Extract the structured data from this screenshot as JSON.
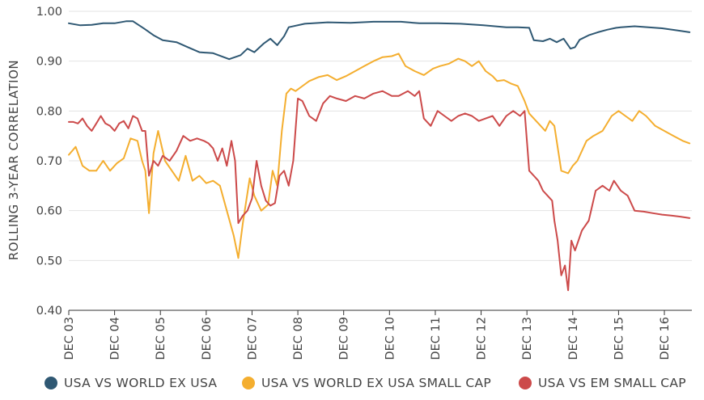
{
  "chart_data": {
    "type": "line",
    "title": "",
    "xlabel": "",
    "ylabel": "ROLLING 3-YEAR CORRELATION",
    "ylim": [
      0.4,
      1.0
    ],
    "yticks": [
      1.0,
      0.9,
      0.8,
      0.7,
      0.6,
      0.5,
      0.4
    ],
    "ytick_labels": [
      "1.00",
      "0.90",
      "0.80",
      "0.70",
      "0.60",
      "0.50",
      "0.40"
    ],
    "xlim": [
      2003.95,
      2017.55
    ],
    "xticks": [
      2003.95,
      2004.95,
      2005.95,
      2006.95,
      2007.95,
      2008.95,
      2009.95,
      2010.95,
      2011.95,
      2012.95,
      2013.95,
      2014.95,
      2015.95,
      2016.95
    ],
    "xtick_labels": [
      "DEC 03",
      "DEC 04",
      "DEC 05",
      "DEC 06",
      "DEC 07",
      "DEC 08",
      "DEC 09",
      "DEC 10",
      "DEC 11",
      "DEC 12",
      "DEC 13",
      "DEC 14",
      "DEC 15",
      "DEC 16"
    ],
    "grid": true,
    "legend_position": "bottom",
    "series": [
      {
        "name": "USA VS WORLD EX USA",
        "color": "#2f5873",
        "x": [
          2003.95,
          2004.2,
          2004.45,
          2004.7,
          2004.95,
          2005.2,
          2005.35,
          2005.6,
          2005.8,
          2006.0,
          2006.3,
          2006.55,
          2006.8,
          2007.1,
          2007.45,
          2007.7,
          2007.85,
          2008.0,
          2008.2,
          2008.35,
          2008.5,
          2008.65,
          2008.75,
          2009.1,
          2009.6,
          2010.1,
          2010.6,
          2011.2,
          2011.6,
          2012.0,
          2012.5,
          2013.0,
          2013.5,
          2013.75,
          2014.0,
          2014.1,
          2014.3,
          2014.45,
          2014.6,
          2014.75,
          2014.9,
          2015.0,
          2015.1,
          2015.3,
          2015.5,
          2015.7,
          2015.9,
          2016.0,
          2016.3,
          2016.6,
          2016.9,
          2017.2,
          2017.5
        ],
        "y": [
          0.976,
          0.972,
          0.973,
          0.976,
          0.976,
          0.98,
          0.98,
          0.965,
          0.952,
          0.942,
          0.938,
          0.928,
          0.918,
          0.916,
          0.904,
          0.912,
          0.925,
          0.918,
          0.935,
          0.945,
          0.932,
          0.95,
          0.968,
          0.975,
          0.978,
          0.977,
          0.979,
          0.979,
          0.976,
          0.976,
          0.975,
          0.972,
          0.968,
          0.968,
          0.967,
          0.942,
          0.94,
          0.945,
          0.938,
          0.945,
          0.925,
          0.928,
          0.943,
          0.952,
          0.958,
          0.963,
          0.967,
          0.968,
          0.97,
          0.968,
          0.966,
          0.962,
          0.958
        ]
      },
      {
        "name": "USA VS WORLD EX USA SMALL CAP",
        "color": "#f4ae2f",
        "x": [
          2003.95,
          2004.1,
          2004.25,
          2004.4,
          2004.55,
          2004.7,
          2004.85,
          2005.0,
          2005.15,
          2005.3,
          2005.45,
          2005.55,
          2005.62,
          2005.7,
          2005.8,
          2005.9,
          2006.05,
          2006.2,
          2006.35,
          2006.5,
          2006.65,
          2006.8,
          2006.95,
          2007.1,
          2007.25,
          2007.4,
          2007.55,
          2007.65,
          2007.75,
          2007.9,
          2008.0,
          2008.15,
          2008.3,
          2008.4,
          2008.5,
          2008.6,
          2008.7,
          2008.8,
          2008.9,
          2009.05,
          2009.2,
          2009.4,
          2009.6,
          2009.8,
          2010.0,
          2010.2,
          2010.4,
          2010.6,
          2010.8,
          2011.0,
          2011.15,
          2011.3,
          2011.5,
          2011.7,
          2011.9,
          2012.05,
          2012.25,
          2012.45,
          2012.6,
          2012.75,
          2012.9,
          2013.05,
          2013.2,
          2013.3,
          2013.45,
          2013.6,
          2013.75,
          2013.9,
          2014.0,
          2014.15,
          2014.25,
          2014.35,
          2014.45,
          2014.55,
          2014.7,
          2014.85,
          2014.95,
          2015.05,
          2015.25,
          2015.4,
          2015.6,
          2015.8,
          2015.95,
          2016.1,
          2016.25,
          2016.4,
          2016.55,
          2016.75,
          2016.95,
          2017.15,
          2017.35,
          2017.5
        ],
        "y": [
          0.712,
          0.728,
          0.69,
          0.68,
          0.68,
          0.7,
          0.68,
          0.695,
          0.705,
          0.745,
          0.74,
          0.7,
          0.68,
          0.595,
          0.715,
          0.76,
          0.7,
          0.68,
          0.66,
          0.71,
          0.66,
          0.67,
          0.655,
          0.66,
          0.65,
          0.6,
          0.55,
          0.505,
          0.575,
          0.665,
          0.63,
          0.6,
          0.612,
          0.68,
          0.65,
          0.76,
          0.835,
          0.845,
          0.84,
          0.85,
          0.86,
          0.868,
          0.872,
          0.862,
          0.87,
          0.88,
          0.89,
          0.9,
          0.908,
          0.91,
          0.915,
          0.89,
          0.88,
          0.872,
          0.885,
          0.89,
          0.895,
          0.905,
          0.9,
          0.89,
          0.9,
          0.88,
          0.87,
          0.86,
          0.862,
          0.855,
          0.85,
          0.82,
          0.795,
          0.78,
          0.77,
          0.76,
          0.78,
          0.77,
          0.68,
          0.675,
          0.69,
          0.7,
          0.74,
          0.75,
          0.76,
          0.79,
          0.8,
          0.79,
          0.78,
          0.8,
          0.79,
          0.77,
          0.76,
          0.75,
          0.74,
          0.735
        ]
      },
      {
        "name": "USA VS EM SMALL CAP",
        "color": "#cc4a4a",
        "x": [
          2003.95,
          2004.05,
          2004.15,
          2004.25,
          2004.35,
          2004.45,
          2004.55,
          2004.65,
          2004.75,
          2004.85,
          2004.95,
          2005.05,
          2005.15,
          2005.25,
          2005.35,
          2005.45,
          2005.55,
          2005.62,
          2005.7,
          2005.8,
          2005.9,
          2006.0,
          2006.15,
          2006.3,
          2006.45,
          2006.6,
          2006.75,
          2006.9,
          2007.0,
          2007.1,
          2007.2,
          2007.3,
          2007.4,
          2007.5,
          2007.58,
          2007.65,
          2007.75,
          2007.85,
          2007.95,
          2008.05,
          2008.15,
          2008.25,
          2008.35,
          2008.45,
          2008.55,
          2008.65,
          2008.75,
          2008.85,
          2008.95,
          2009.05,
          2009.2,
          2009.35,
          2009.5,
          2009.65,
          2009.8,
          2010.0,
          2010.2,
          2010.4,
          2010.6,
          2010.8,
          2011.0,
          2011.15,
          2011.25,
          2011.35,
          2011.5,
          2011.6,
          2011.7,
          2011.85,
          2012.0,
          2012.15,
          2012.3,
          2012.45,
          2012.6,
          2012.75,
          2012.9,
          2013.05,
          2013.2,
          2013.35,
          2013.5,
          2013.65,
          2013.8,
          2013.9,
          2014.0,
          2014.1,
          2014.2,
          2014.3,
          2014.4,
          2014.5,
          2014.55,
          2014.62,
          2014.7,
          2014.78,
          2014.85,
          2014.92,
          2015.0,
          2015.15,
          2015.3,
          2015.45,
          2015.6,
          2015.75,
          2015.85,
          2016.0,
          2016.15,
          2016.3,
          2016.5,
          2016.7,
          2016.9,
          2017.1,
          2017.3,
          2017.5
        ],
        "y": [
          0.778,
          0.778,
          0.775,
          0.785,
          0.77,
          0.76,
          0.775,
          0.79,
          0.775,
          0.77,
          0.76,
          0.775,
          0.78,
          0.765,
          0.79,
          0.785,
          0.76,
          0.76,
          0.67,
          0.7,
          0.69,
          0.71,
          0.7,
          0.72,
          0.75,
          0.74,
          0.745,
          0.74,
          0.735,
          0.725,
          0.7,
          0.725,
          0.69,
          0.74,
          0.7,
          0.575,
          0.59,
          0.6,
          0.625,
          0.7,
          0.65,
          0.62,
          0.61,
          0.615,
          0.67,
          0.68,
          0.65,
          0.7,
          0.825,
          0.82,
          0.79,
          0.78,
          0.815,
          0.83,
          0.825,
          0.82,
          0.83,
          0.825,
          0.835,
          0.84,
          0.83,
          0.83,
          0.835,
          0.84,
          0.83,
          0.84,
          0.785,
          0.77,
          0.8,
          0.79,
          0.78,
          0.79,
          0.795,
          0.79,
          0.78,
          0.785,
          0.79,
          0.77,
          0.79,
          0.8,
          0.79,
          0.8,
          0.68,
          0.67,
          0.66,
          0.64,
          0.63,
          0.62,
          0.58,
          0.54,
          0.47,
          0.49,
          0.44,
          0.54,
          0.52,
          0.56,
          0.58,
          0.64,
          0.65,
          0.64,
          0.66,
          0.64,
          0.63,
          0.6,
          0.598,
          0.595,
          0.592,
          0.59,
          0.588,
          0.585
        ]
      }
    ]
  },
  "legend": {
    "items": [
      {
        "label": "USA VS WORLD EX USA",
        "color": "#2f5873"
      },
      {
        "label": "USA VS WORLD EX USA SMALL CAP",
        "color": "#f4ae2f"
      },
      {
        "label": "USA VS EM SMALL CAP",
        "color": "#cc4a4a"
      }
    ]
  }
}
